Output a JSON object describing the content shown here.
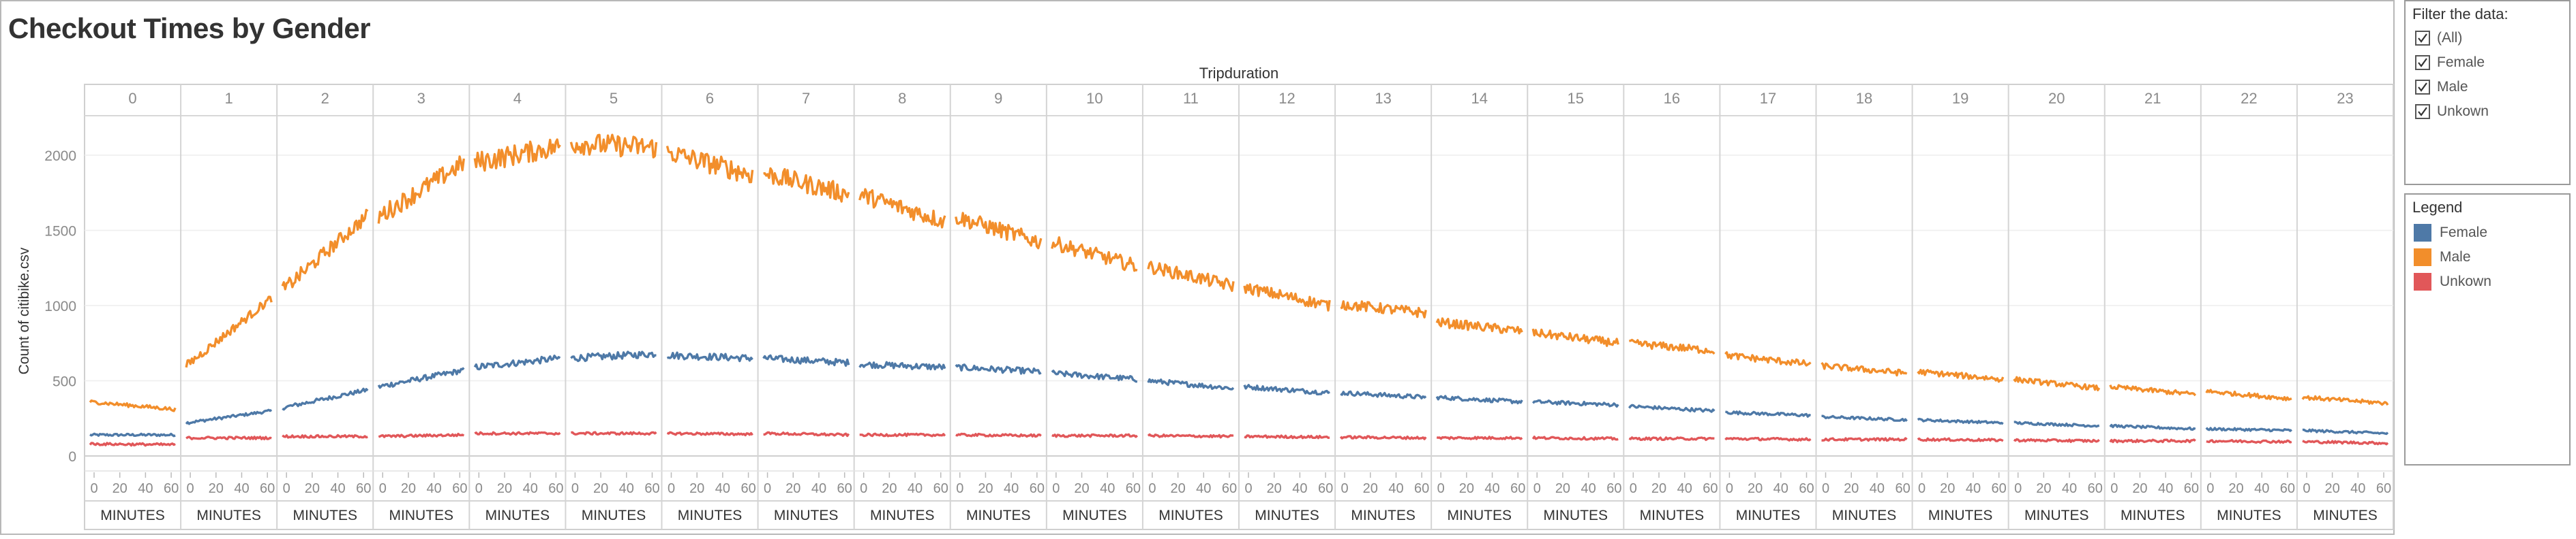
{
  "dashboard": {
    "title": "Checkout Times by Gender"
  },
  "filter": {
    "title": "Filter the data:",
    "items": [
      {
        "label": "(All)",
        "checked": true
      },
      {
        "label": "Female",
        "checked": true
      },
      {
        "label": "Male",
        "checked": true
      },
      {
        "label": "Unkown",
        "checked": true
      }
    ]
  },
  "legend": {
    "title": "Legend",
    "items": [
      {
        "label": "Female",
        "color": "#4e79a7"
      },
      {
        "label": "Male",
        "color": "#f28e2b"
      },
      {
        "label": "Unkown",
        "color": "#e15759"
      }
    ]
  },
  "chart_data": {
    "type": "line",
    "title": "Checkout Times by Gender",
    "column_header": "Tripduration",
    "panes": [
      "0",
      "1",
      "2",
      "3",
      "4",
      "5",
      "6",
      "7",
      "8",
      "9",
      "10",
      "11",
      "12",
      "13",
      "14",
      "15",
      "16",
      "17",
      "18",
      "19",
      "20",
      "21",
      "22",
      "23"
    ],
    "ylabel": "Count of citibike.csv",
    "ylim": [
      0,
      2300
    ],
    "yticks": [
      0,
      500,
      1000,
      1500,
      2000
    ],
    "x_range_per_pane": [
      0,
      60
    ],
    "xticks": [
      0,
      20,
      40,
      60
    ],
    "xlabel": "MINUTES",
    "grid": true,
    "legend_position": "right",
    "series": [
      {
        "name": "Female",
        "color": "#4e79a7",
        "pane_start": [
          140,
          220,
          320,
          460,
          590,
          650,
          670,
          650,
          610,
          590,
          550,
          500,
          460,
          420,
          390,
          360,
          330,
          290,
          260,
          240,
          220,
          200,
          180,
          170
        ],
        "pane_end": [
          140,
          300,
          440,
          570,
          650,
          680,
          650,
          620,
          590,
          560,
          510,
          450,
          420,
          390,
          360,
          340,
          300,
          270,
          240,
          220,
          200,
          180,
          170,
          150
        ]
      },
      {
        "name": "Male",
        "color": "#f28e2b",
        "pane_start": [
          360,
          600,
          1100,
          1590,
          1950,
          2080,
          2020,
          1880,
          1740,
          1590,
          1420,
          1260,
          1120,
          1010,
          890,
          820,
          750,
          670,
          600,
          560,
          510,
          460,
          430,
          390
        ],
        "pane_end": [
          310,
          1050,
          1600,
          1950,
          2060,
          2050,
          1870,
          1740,
          1560,
          1420,
          1260,
          1130,
          1000,
          950,
          830,
          750,
          700,
          610,
          550,
          510,
          450,
          410,
          380,
          350
        ]
      },
      {
        "name": "Unkown",
        "color": "#e15759",
        "pane_start": [
          80,
          120,
          130,
          130,
          150,
          150,
          150,
          150,
          140,
          140,
          135,
          135,
          130,
          125,
          120,
          120,
          115,
          115,
          110,
          110,
          105,
          100,
          100,
          95
        ],
        "pane_end": [
          75,
          120,
          130,
          140,
          150,
          150,
          145,
          140,
          140,
          135,
          135,
          130,
          125,
          120,
          120,
          115,
          115,
          110,
          110,
          105,
          100,
          100,
          95,
          85
        ]
      }
    ]
  }
}
